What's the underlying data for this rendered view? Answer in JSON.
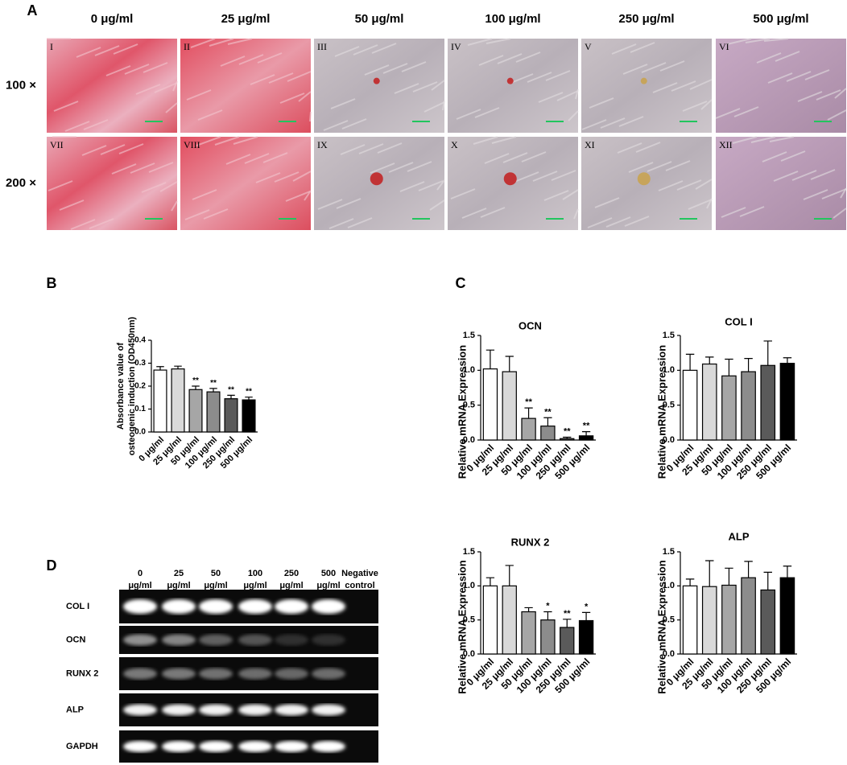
{
  "panel_labels": [
    "A",
    "B",
    "C",
    "D"
  ],
  "panel_a": {
    "columns": [
      "0 μg/ml",
      "25 μg/ml",
      "50 μg/ml",
      "100 μg/ml",
      "250 μg/ml",
      "500 μg/ml"
    ],
    "rows": [
      "100 ×",
      "200 ×"
    ],
    "images": [
      [
        "I",
        "II",
        "III",
        "IV",
        "V",
        "VI"
      ],
      [
        "VII",
        "VIII",
        "IX",
        "X",
        "XI",
        "XII"
      ]
    ]
  },
  "panel_d": {
    "columns": [
      [
        "0",
        "μg/ml"
      ],
      [
        "25",
        "μg/ml"
      ],
      [
        "50",
        "μg/ml"
      ],
      [
        "100",
        "μg/ml"
      ],
      [
        "250",
        "μg/ml"
      ],
      [
        "500",
        "μg/ml"
      ],
      [
        "Negative",
        "control"
      ]
    ],
    "rows": [
      "COL I",
      "OCN",
      "RUNX 2",
      "ALP",
      "GAPDH"
    ]
  },
  "chart_data": [
    {
      "type": "bar",
      "y_label": [
        "Absorbance value of",
        "osteogenic induction (OD450nm)"
      ],
      "categories": [
        "0 μg/ml",
        "25 μg/ml",
        "50 μg/ml",
        "100 μg/ml",
        "250 μg/ml",
        "500 μg/ml"
      ],
      "values": [
        0.27,
        0.275,
        0.185,
        0.175,
        0.145,
        0.14
      ],
      "errors": [
        0.015,
        0.012,
        0.015,
        0.015,
        0.015,
        0.012
      ],
      "annotations": [
        null,
        null,
        "**",
        "**",
        "**",
        "**"
      ],
      "colors": [
        "#ffffff",
        "#d9d9d9",
        "#a6a6a6",
        "#8c8c8c",
        "#5a5a5a",
        "#000000"
      ],
      "ylim": [
        0,
        0.4
      ],
      "yticks": [
        {
          "value": 0,
          "label": "0.0"
        },
        0.1,
        0.2,
        0.3,
        0.4
      ]
    },
    {
      "type": "bar",
      "title": "OCN",
      "y_label": [
        "Relative mRNA Expression"
      ],
      "categories": [
        "0 μg/ml",
        "25 μg/ml",
        "50 μg/ml",
        "100 μg/ml",
        "250 μg/ml",
        "500 μg/ml"
      ],
      "values": [
        1.02,
        0.98,
        0.31,
        0.2,
        0.02,
        0.06
      ],
      "errors": [
        0.27,
        0.22,
        0.15,
        0.12,
        0.02,
        0.06
      ],
      "annotations": [
        null,
        null,
        "**",
        "**",
        "**",
        "**"
      ],
      "colors": [
        "#ffffff",
        "#d9d9d9",
        "#a6a6a6",
        "#8c8c8c",
        "#5a5a5a",
        "#000000"
      ],
      "ylim": [
        0,
        1.5
      ],
      "yticks": [
        {
          "value": 0,
          "label": "0.0"
        },
        0.5,
        {
          "value": 1,
          "label": "1.0"
        },
        1.5
      ]
    },
    {
      "type": "bar",
      "title": "COL I",
      "y_label": [
        "Relative mRNA Expression"
      ],
      "categories": [
        "0 μg/ml",
        "25 μg/ml",
        "50 μg/ml",
        "100 μg/ml",
        "250 μg/ml",
        "500 μg/ml"
      ],
      "values": [
        1.0,
        1.09,
        0.92,
        0.98,
        1.07,
        1.1
      ],
      "errors": [
        0.23,
        0.1,
        0.24,
        0.19,
        0.35,
        0.08
      ],
      "colors": [
        "#ffffff",
        "#d9d9d9",
        "#a6a6a6",
        "#8c8c8c",
        "#5a5a5a",
        "#000000"
      ],
      "ylim": [
        0,
        1.5
      ],
      "yticks": [
        {
          "value": 0,
          "label": "0.0"
        },
        0.5,
        {
          "value": 1,
          "label": "1.0"
        },
        1.5
      ]
    },
    {
      "type": "bar",
      "title": "RUNX 2",
      "y_label": [
        "Relative mRNA Expression"
      ],
      "categories": [
        "0 μg/ml",
        "25 μg/ml",
        "50 μg/ml",
        "100 μg/ml",
        "250 μg/ml",
        "500 μg/ml"
      ],
      "values": [
        1.0,
        1.0,
        0.62,
        0.5,
        0.39,
        0.49
      ],
      "errors": [
        0.12,
        0.3,
        0.06,
        0.12,
        0.12,
        0.12
      ],
      "annotations": [
        null,
        null,
        null,
        "*",
        "**",
        "*"
      ],
      "colors": [
        "#ffffff",
        "#d9d9d9",
        "#a6a6a6",
        "#8c8c8c",
        "#5a5a5a",
        "#000000"
      ],
      "ylim": [
        0,
        1.5
      ],
      "yticks": [
        {
          "value": 0,
          "label": "0.0"
        },
        0.5,
        {
          "value": 1,
          "label": "1.0"
        },
        1.5
      ]
    },
    {
      "type": "bar",
      "title": "ALP",
      "y_label": [
        "Relative mRNA Expression"
      ],
      "categories": [
        "0 μg/ml",
        "25 μg/ml",
        "50 μg/ml",
        "100 μg/ml",
        "250 μg/ml",
        "500 μg/ml"
      ],
      "values": [
        1.0,
        0.99,
        1.01,
        1.12,
        0.94,
        1.12
      ],
      "errors": [
        0.1,
        0.38,
        0.25,
        0.24,
        0.26,
        0.17
      ],
      "colors": [
        "#ffffff",
        "#d9d9d9",
        "#a6a6a6",
        "#8c8c8c",
        "#5a5a5a",
        "#000000"
      ],
      "ylim": [
        0,
        1.5
      ],
      "yticks": [
        {
          "value": 0,
          "label": "0.0"
        },
        0.5,
        {
          "value": 1,
          "label": "1.0"
        },
        1.5
      ]
    }
  ]
}
